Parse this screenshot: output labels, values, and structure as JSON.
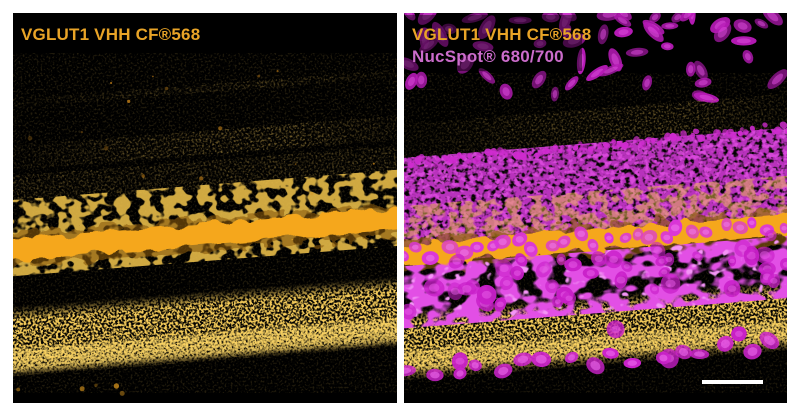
{
  "figure": {
    "background": "#ffffff",
    "panel_background": "#000000",
    "panels": [
      {
        "id": "left",
        "description": "fluorescence micrograph, retina section, VGLUT1 channel only",
        "labels": [
          {
            "text": "VGLUT1 VHH CF®568",
            "color": "#E9A427"
          }
        ]
      },
      {
        "id": "right",
        "description": "fluorescence micrograph, retina section, VGLUT1 + nuclear counterstain overlay",
        "labels": [
          {
            "text": "VGLUT1 VHH CF®568",
            "color": "#E9A427"
          },
          {
            "text": "NucSpot® 680/700",
            "color": "#CB6CCB"
          }
        ]
      }
    ],
    "stains": {
      "vglut1_orange": "#F5A71F",
      "nucspot_magenta": "#CC22CC"
    },
    "scale_bar_color": "#FFFFFF"
  }
}
